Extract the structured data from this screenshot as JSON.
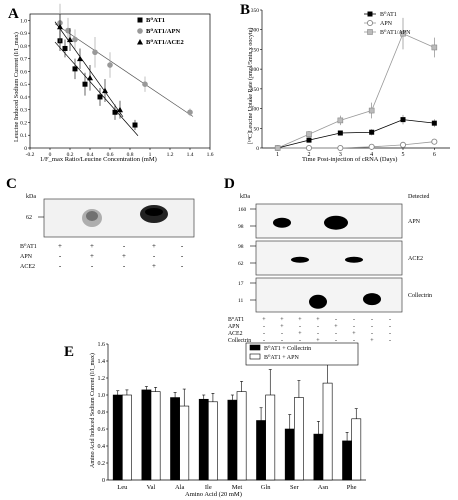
{
  "panels": {
    "A": {
      "letter": "A",
      "ylabel": "Leucine Induced Sodium Current (I/I_max)",
      "xlabel": "1/F_max Ratio/Leucine Concentration (mM)",
      "legend": [
        "B⁰AT1",
        "B⁰AT1/APN",
        "B⁰AT1/ACE2"
      ],
      "xticks": [
        "-0.2",
        "0",
        "0.2",
        "0.4",
        "0.6",
        "0.8",
        "1",
        "1.2",
        "1.4",
        "1.6"
      ],
      "yticks": [
        "0",
        "0.1",
        "0.2",
        "0.3",
        "0.4",
        "0.5",
        "0.6",
        "0.7",
        "0.8",
        "0.9",
        "1.0"
      ]
    },
    "B": {
      "letter": "B",
      "ylabel": "[¹⁴C]Leucine Uptake Rate (pmol/5min x oocyte)",
      "xlabel": "Time Post-injection of cRNA (Days)",
      "legend": [
        "B⁰AT1",
        "APN",
        "B⁰AT1/APN"
      ],
      "xticks": [
        "1",
        "2",
        "3",
        "4",
        "5",
        "6"
      ],
      "yticks": [
        "0",
        "50",
        "100",
        "150",
        "200",
        "250",
        "300",
        "350"
      ]
    },
    "C": {
      "letter": "C",
      "kda": "kDa",
      "marker": "62",
      "rows": [
        {
          "label": "B⁰AT1",
          "signs": [
            "+",
            "+",
            "-",
            "+",
            "-"
          ]
        },
        {
          "label": "APN",
          "signs": [
            "-",
            "+",
            "+",
            "-",
            "-"
          ]
        },
        {
          "label": "ACE2",
          "signs": [
            "-",
            "-",
            "-",
            "+",
            "-"
          ]
        }
      ]
    },
    "D": {
      "letter": "D",
      "kda": "kDa",
      "detected": "Detected",
      "blots": [
        {
          "name": "APN",
          "markers": [
            "160",
            "98"
          ]
        },
        {
          "name": "ACE2",
          "markers": [
            "98",
            "62"
          ]
        },
        {
          "name": "Collectrin",
          "markers": [
            "17",
            "11"
          ]
        }
      ],
      "rows": [
        {
          "label": "B⁰AT1",
          "signs": [
            "+",
            "+",
            "+",
            "+",
            "-",
            "-",
            "-",
            "-"
          ]
        },
        {
          "label": "APN",
          "signs": [
            "-",
            "+",
            "-",
            "-",
            "+",
            "-",
            "-",
            "-"
          ]
        },
        {
          "label": "ACE2",
          "signs": [
            "-",
            "-",
            "+",
            "-",
            "-",
            "+",
            "-",
            "-"
          ]
        },
        {
          "label": "Collectrin",
          "signs": [
            "-",
            "-",
            "-",
            "+",
            "-",
            "-",
            "+",
            "-"
          ]
        }
      ]
    },
    "E": {
      "letter": "E",
      "ylabel": "Amino Acid Induced Sodium Current (I/I_max)",
      "xlabel": "Amino Acid (20 mM)",
      "legend": [
        "B⁰AT1 + Collectrin",
        "B⁰AT1 + APN"
      ],
      "yticks": [
        "0",
        "0.2",
        "0.4",
        "0.6",
        "0.8",
        "1.0",
        "1.2",
        "1.4",
        "1.6"
      ]
    }
  },
  "chart_data": [
    {
      "type": "scatter",
      "panel": "A",
      "xlim": [
        -0.2,
        1.6
      ],
      "ylim": [
        0,
        1.05
      ],
      "series": [
        {
          "name": "B⁰AT1",
          "marker": "square",
          "color": "#000000",
          "x": [
            0.1,
            0.15,
            0.25,
            0.35,
            0.5,
            0.65,
            0.85
          ],
          "y": [
            0.84,
            0.78,
            0.62,
            0.5,
            0.4,
            0.28,
            0.18
          ],
          "err": [
            0.08,
            0.07,
            0.08,
            0.09,
            0.07,
            0.06,
            0.04
          ]
        },
        {
          "name": "B⁰AT1/APN",
          "marker": "circle",
          "color": "#999999",
          "x": [
            0.1,
            0.18,
            0.25,
            0.45,
            0.6,
            0.95,
            1.4
          ],
          "y": [
            0.98,
            0.92,
            0.85,
            0.75,
            0.65,
            0.5,
            0.28
          ],
          "err": [
            0.15,
            0.1,
            0.08,
            0.12,
            0.1,
            0.06,
            0.03
          ]
        },
        {
          "name": "B⁰AT1/ACE2",
          "marker": "triangle",
          "color": "#000000",
          "x": [
            0.1,
            0.2,
            0.3,
            0.4,
            0.55,
            0.7
          ],
          "y": [
            0.95,
            0.85,
            0.7,
            0.55,
            0.45,
            0.3
          ],
          "err": [
            0.1,
            0.09,
            0.08,
            0.1,
            0.09,
            0.07
          ]
        }
      ]
    },
    {
      "type": "line",
      "panel": "B",
      "xlim": [
        0.5,
        6.5
      ],
      "ylim": [
        0,
        350
      ],
      "series": [
        {
          "name": "B⁰AT1",
          "marker": "square",
          "color": "#000000",
          "x": [
            1,
            2,
            3,
            4,
            5,
            6
          ],
          "y": [
            0,
            20,
            38,
            40,
            72,
            63
          ],
          "err": [
            3,
            5,
            6,
            8,
            12,
            10
          ]
        },
        {
          "name": "APN",
          "marker": "circle-open",
          "color": "#999999",
          "x": [
            1,
            2,
            3,
            4,
            5,
            6
          ],
          "y": [
            0,
            0,
            0,
            3,
            8,
            16
          ],
          "err": [
            2,
            2,
            2,
            3,
            4,
            6
          ]
        },
        {
          "name": "B⁰AT1/APN",
          "marker": "square-gray",
          "color": "#999999",
          "x": [
            1,
            2,
            3,
            4,
            5,
            6
          ],
          "y": [
            0,
            35,
            70,
            95,
            290,
            255
          ],
          "err": [
            3,
            8,
            12,
            20,
            40,
            25
          ]
        }
      ]
    },
    {
      "type": "bar",
      "panel": "E",
      "categories": [
        "Leu",
        "Val",
        "Ala",
        "Ile",
        "Met",
        "Gln",
        "Ser",
        "Asn",
        "Phe"
      ],
      "ylim": [
        0,
        1.6
      ],
      "series": [
        {
          "name": "B⁰AT1 + Collectrin",
          "color": "#000000",
          "values": [
            1.0,
            1.06,
            0.97,
            0.95,
            0.94,
            0.7,
            0.6,
            0.54,
            0.46
          ],
          "err": [
            0.05,
            0.04,
            0.06,
            0.05,
            0.06,
            0.15,
            0.17,
            0.15,
            0.1
          ]
        },
        {
          "name": "B⁰AT1 + APN",
          "color": "#ffffff",
          "values": [
            1.0,
            1.04,
            0.87,
            0.92,
            1.04,
            1.0,
            0.97,
            1.14,
            0.72
          ],
          "err": [
            0.06,
            0.05,
            0.2,
            0.1,
            0.12,
            0.3,
            0.2,
            0.28,
            0.12
          ]
        }
      ]
    }
  ]
}
